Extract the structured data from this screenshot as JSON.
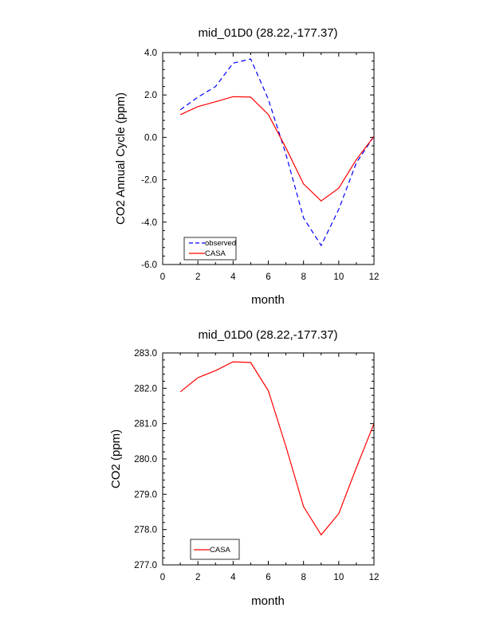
{
  "chart_data": [
    {
      "type": "line",
      "title": "mid_01D0 (28.22,-177.37)",
      "xlabel": "month",
      "ylabel": "CO2 Annual Cycle (ppm)",
      "xlim": [
        0,
        12
      ],
      "ylim": [
        -6,
        4
      ],
      "xticks": [
        0,
        2,
        4,
        6,
        8,
        10,
        12
      ],
      "xtick_labels": [
        "0",
        "2",
        "4",
        "6",
        "8",
        "10",
        "12"
      ],
      "yticks": [
        -6,
        -4,
        -2,
        0,
        2,
        4
      ],
      "ytick_labels": [
        "-6.0",
        "-4.0",
        "-2.0",
        "0.0",
        "2.0",
        "4.0"
      ],
      "x": [
        1,
        2,
        3,
        4,
        5,
        6,
        7,
        8,
        9,
        10,
        11,
        12
      ],
      "series": [
        {
          "name": "observed",
          "color": "#0000ff",
          "dash": true,
          "values": [
            1.3,
            1.9,
            2.4,
            3.5,
            3.7,
            1.8,
            -0.8,
            -3.8,
            -5.1,
            -3.4,
            -1.2,
            0.05
          ]
        },
        {
          "name": "CASA",
          "color": "#ff0000",
          "dash": false,
          "values": [
            1.07,
            1.45,
            1.68,
            1.92,
            1.9,
            1.08,
            -0.5,
            -2.2,
            -3.0,
            -2.4,
            -1.05,
            0.05
          ]
        }
      ],
      "legend": "bottom-left",
      "grid": false
    },
    {
      "type": "line",
      "title": "mid_01D0 (28.22,-177.37)",
      "xlabel": "month",
      "ylabel": "CO2 (ppm)",
      "xlim": [
        0,
        12
      ],
      "ylim": [
        277.0,
        283.0
      ],
      "xticks": [
        0,
        2,
        4,
        6,
        8,
        10,
        12
      ],
      "xtick_labels": [
        "0",
        "2",
        "4",
        "6",
        "8",
        "10",
        "12"
      ],
      "yticks": [
        277,
        278,
        279,
        280,
        281,
        282,
        283
      ],
      "ytick_labels": [
        "277.0",
        "278.0",
        "279.0",
        "280.0",
        "281.0",
        "282.0",
        "283.0"
      ],
      "x": [
        1,
        2,
        3,
        4,
        5,
        6,
        7,
        8,
        9,
        10,
        11,
        12
      ],
      "series": [
        {
          "name": "CASA",
          "color": "#ff0000",
          "dash": false,
          "values": [
            281.9,
            282.3,
            282.5,
            282.75,
            282.73,
            281.93,
            280.35,
            278.65,
            277.85,
            278.45,
            279.75,
            281.0
          ]
        }
      ],
      "legend": "bottom-left",
      "grid": false
    }
  ]
}
